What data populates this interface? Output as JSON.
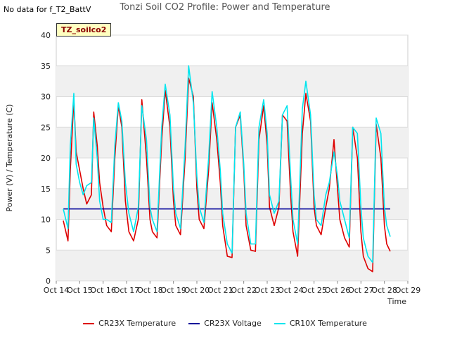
{
  "header": {
    "no_data_note": "No data for f_T2_BattV",
    "title": "Tonzi Soil CO2 Profile: Power and Temperature",
    "site_badge": "TZ_soilco2"
  },
  "chart_data": {
    "type": "line",
    "title": "Tonzi Soil CO2 Profile: Power and Temperature",
    "xlabel": "Time",
    "ylabel": "Power (V) / Temperature (C)",
    "ylim": [
      0,
      40
    ],
    "yticks": [
      0,
      5,
      10,
      15,
      20,
      25,
      30,
      35,
      40
    ],
    "xlim": [
      14,
      29
    ],
    "xticks": [
      14,
      15,
      16,
      17,
      18,
      19,
      20,
      21,
      22,
      23,
      24,
      25,
      26,
      27,
      28,
      29
    ],
    "xtick_labels": [
      "Oct 14",
      "Oct 15",
      "Oct 16",
      "Oct 17",
      "Oct 18",
      "Oct 19",
      "Oct 20",
      "Oct 21",
      "Oct 22",
      "Oct 23",
      "Oct 24",
      "Oct 25",
      "Oct 26",
      "Oct 27",
      "Oct 28",
      "Oct 29"
    ],
    "grid": true,
    "legend_position": "bottom",
    "series": [
      {
        "name": "CR23X Temperature",
        "color": "#dd0000",
        "x": [
          14.3,
          14.5,
          14.6,
          14.75,
          14.85,
          15.0,
          15.15,
          15.3,
          15.5,
          15.6,
          15.75,
          15.85,
          16.0,
          16.15,
          16.35,
          16.5,
          16.65,
          16.8,
          16.95,
          17.1,
          17.3,
          17.5,
          17.65,
          17.85,
          18.0,
          18.1,
          18.3,
          18.5,
          18.65,
          18.85,
          19.0,
          19.1,
          19.3,
          19.5,
          19.65,
          19.85,
          20.0,
          20.1,
          20.3,
          20.5,
          20.65,
          20.85,
          21.0,
          21.1,
          21.3,
          21.5,
          21.65,
          21.85,
          22.0,
          22.1,
          22.3,
          22.5,
          22.65,
          22.85,
          23.0,
          23.1,
          23.3,
          23.5,
          23.65,
          23.85,
          24.0,
          24.1,
          24.3,
          24.5,
          24.65,
          24.85,
          25.0,
          25.1,
          25.3,
          25.5,
          25.65,
          25.85,
          26.0,
          26.1,
          26.3,
          26.5,
          26.65,
          26.85,
          27.0,
          27.1,
          27.3,
          27.5,
          27.65,
          27.85,
          28.0,
          28.1,
          28.25
        ],
        "values": [
          9.8,
          6.5,
          18,
          29.5,
          21,
          18,
          15,
          12.5,
          14,
          27.5,
          22,
          16,
          12,
          9,
          8,
          20,
          28.5,
          25,
          13,
          8,
          6.5,
          10,
          29.5,
          20,
          10,
          8,
          7,
          23,
          31,
          25,
          13,
          9,
          7.5,
          20,
          33,
          30,
          15,
          10,
          8.5,
          18,
          29,
          23,
          16,
          9,
          4,
          3.8,
          25,
          27,
          18,
          9,
          5,
          4.8,
          23,
          28.5,
          22,
          12,
          9,
          12,
          27,
          26,
          14,
          8,
          4,
          24,
          30.5,
          26,
          12,
          9,
          7.5,
          12,
          15,
          23,
          15,
          10,
          7,
          5.5,
          25,
          20,
          8,
          4,
          2,
          1.5,
          25.5,
          20,
          9,
          6,
          4.8
        ]
      },
      {
        "name": "CR23X Voltage",
        "color": "#000099",
        "x": [
          14.3,
          28.25
        ],
        "values": [
          11.7,
          11.7
        ]
      },
      {
        "name": "CR10X Temperature",
        "color": "#00e5ee",
        "x": [
          14.3,
          14.5,
          14.6,
          14.75,
          14.85,
          15.0,
          15.15,
          15.3,
          15.5,
          15.6,
          15.75,
          15.85,
          16.0,
          16.15,
          16.35,
          16.5,
          16.65,
          16.8,
          16.95,
          17.1,
          17.3,
          17.5,
          17.65,
          17.85,
          18.0,
          18.1,
          18.3,
          18.5,
          18.65,
          18.85,
          19.0,
          19.1,
          19.3,
          19.5,
          19.65,
          19.85,
          20.0,
          20.1,
          20.3,
          20.5,
          20.65,
          20.85,
          21.0,
          21.1,
          21.3,
          21.5,
          21.65,
          21.85,
          22.0,
          22.1,
          22.3,
          22.5,
          22.65,
          22.85,
          23.0,
          23.1,
          23.3,
          23.5,
          23.65,
          23.85,
          24.0,
          24.1,
          24.3,
          24.5,
          24.65,
          24.85,
          25.0,
          25.1,
          25.3,
          25.5,
          25.65,
          25.85,
          26.0,
          26.1,
          26.3,
          26.5,
          26.65,
          26.85,
          27.0,
          27.1,
          27.3,
          27.5,
          27.65,
          27.85,
          28.0,
          28.1,
          28.25
        ],
        "values": [
          11.7,
          8.5,
          22,
          30.5,
          19,
          16,
          14,
          15.5,
          16,
          26.5,
          20,
          13,
          10,
          10,
          9.5,
          22,
          29,
          26,
          16,
          11,
          8,
          12,
          28.5,
          23,
          12,
          10,
          8,
          25,
          32,
          27,
          15,
          11,
          8.5,
          22,
          35,
          29,
          17,
          12,
          9.5,
          20,
          30.8,
          25,
          18,
          11,
          6,
          4.5,
          25,
          27.5,
          19,
          11,
          6,
          6,
          25,
          29.5,
          24,
          14,
          11,
          13,
          27,
          28.5,
          17,
          10,
          6,
          28,
          32.5,
          27,
          14,
          10,
          9,
          14,
          16,
          21,
          17,
          13,
          10,
          7,
          25,
          24,
          12,
          7,
          4,
          3,
          26.5,
          24,
          12,
          9,
          7.2
        ]
      }
    ]
  }
}
